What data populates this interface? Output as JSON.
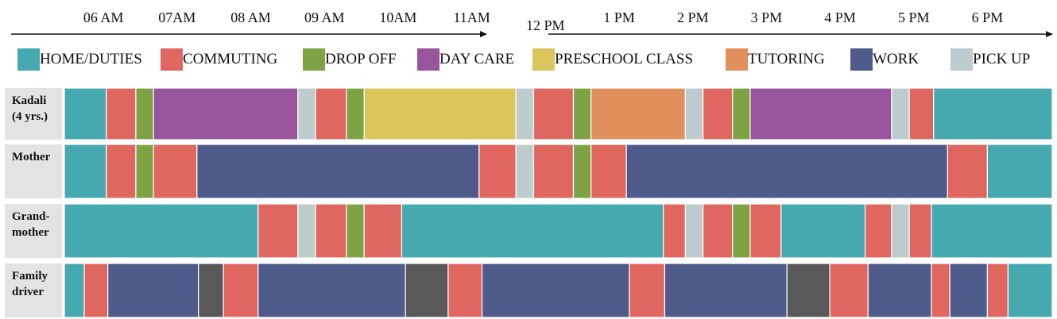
{
  "chart_data": {
    "type": "timeline",
    "time_axis": {
      "ticks": [
        {
          "t": 6.0,
          "label": "06 AM"
        },
        {
          "t": 7.0,
          "label": "07AM"
        },
        {
          "t": 8.0,
          "label": "08 AM"
        },
        {
          "t": 9.0,
          "label": "09 AM"
        },
        {
          "t": 10.0,
          "label": "10AM"
        },
        {
          "t": 11.0,
          "label": "11AM"
        },
        {
          "t": 12.0,
          "label": "12 PM"
        },
        {
          "t": 13.0,
          "label": "1 PM"
        },
        {
          "t": 14.0,
          "label": "2 PM"
        },
        {
          "t": 15.0,
          "label": "3 PM"
        },
        {
          "t": 16.0,
          "label": "4 PM"
        },
        {
          "t": 17.0,
          "label": "5 PM"
        },
        {
          "t": 18.0,
          "label": "6 PM"
        }
      ],
      "range": [
        5.47,
        18.88
      ]
    },
    "legend": [
      {
        "key": "home",
        "label": "HOME/DUTIES",
        "color": "#46a9af"
      },
      {
        "key": "commute",
        "label": "COMMUTING",
        "color": "#e0675f"
      },
      {
        "key": "dropoff",
        "label": "DROP OFF",
        "color": "#7ea345"
      },
      {
        "key": "daycare",
        "label": "DAY CARE",
        "color": "#98559e"
      },
      {
        "key": "preschool",
        "label": "PRESCHOOL CLASS",
        "color": "#dbc65c"
      },
      {
        "key": "tutoring",
        "label": "TUTORING",
        "color": "#e08f5d"
      },
      {
        "key": "work",
        "label": "WORK",
        "color": "#4f5b8a"
      },
      {
        "key": "pickup",
        "label": "PICK UP",
        "color": "#bccbcb"
      }
    ],
    "extra_colors": {
      "other": "#595959"
    },
    "rows": [
      {
        "label": [
          "Kadali",
          "(4 yrs.)"
        ],
        "segments": [
          {
            "start": 5.47,
            "end": 6.04,
            "category": "home"
          },
          {
            "start": 6.04,
            "end": 6.44,
            "category": "commute"
          },
          {
            "start": 6.44,
            "end": 6.68,
            "category": "dropoff"
          },
          {
            "start": 6.68,
            "end": 8.64,
            "category": "daycare"
          },
          {
            "start": 8.64,
            "end": 8.88,
            "category": "pickup"
          },
          {
            "start": 8.88,
            "end": 9.3,
            "category": "commute"
          },
          {
            "start": 9.3,
            "end": 9.54,
            "category": "dropoff"
          },
          {
            "start": 9.54,
            "end": 11.6,
            "category": "preschool"
          },
          {
            "start": 11.6,
            "end": 11.84,
            "category": "pickup"
          },
          {
            "start": 11.84,
            "end": 12.38,
            "category": "commute"
          },
          {
            "start": 12.38,
            "end": 12.62,
            "category": "dropoff"
          },
          {
            "start": 12.62,
            "end": 13.9,
            "category": "tutoring"
          },
          {
            "start": 13.9,
            "end": 14.14,
            "category": "pickup"
          },
          {
            "start": 14.14,
            "end": 14.54,
            "category": "commute"
          },
          {
            "start": 14.54,
            "end": 14.78,
            "category": "dropoff"
          },
          {
            "start": 14.78,
            "end": 16.7,
            "category": "daycare"
          },
          {
            "start": 16.7,
            "end": 16.94,
            "category": "pickup"
          },
          {
            "start": 16.94,
            "end": 17.27,
            "category": "commute"
          },
          {
            "start": 17.27,
            "end": 18.88,
            "category": "home"
          }
        ]
      },
      {
        "label": [
          "Mother"
        ],
        "segments": [
          {
            "start": 5.47,
            "end": 6.04,
            "category": "home"
          },
          {
            "start": 6.04,
            "end": 6.44,
            "category": "commute"
          },
          {
            "start": 6.44,
            "end": 6.68,
            "category": "dropoff"
          },
          {
            "start": 6.68,
            "end": 7.27,
            "category": "commute"
          },
          {
            "start": 7.27,
            "end": 11.1,
            "category": "work"
          },
          {
            "start": 11.1,
            "end": 11.6,
            "category": "commute"
          },
          {
            "start": 11.6,
            "end": 11.84,
            "category": "pickup"
          },
          {
            "start": 11.84,
            "end": 12.38,
            "category": "commute"
          },
          {
            "start": 12.38,
            "end": 12.62,
            "category": "dropoff"
          },
          {
            "start": 12.62,
            "end": 13.1,
            "category": "commute"
          },
          {
            "start": 13.1,
            "end": 17.46,
            "category": "work"
          },
          {
            "start": 17.46,
            "end": 18.0,
            "category": "commute"
          },
          {
            "start": 18.0,
            "end": 18.88,
            "category": "home"
          }
        ]
      },
      {
        "label": [
          "Grand-",
          "mother"
        ],
        "segments": [
          {
            "start": 5.47,
            "end": 8.1,
            "category": "home"
          },
          {
            "start": 8.1,
            "end": 8.64,
            "category": "commute"
          },
          {
            "start": 8.64,
            "end": 8.88,
            "category": "pickup"
          },
          {
            "start": 8.88,
            "end": 9.3,
            "category": "commute"
          },
          {
            "start": 9.3,
            "end": 9.54,
            "category": "dropoff"
          },
          {
            "start": 9.54,
            "end": 10.05,
            "category": "commute"
          },
          {
            "start": 10.05,
            "end": 13.6,
            "category": "home"
          },
          {
            "start": 13.6,
            "end": 13.9,
            "category": "commute"
          },
          {
            "start": 13.9,
            "end": 14.14,
            "category": "pickup"
          },
          {
            "start": 14.14,
            "end": 14.54,
            "category": "commute"
          },
          {
            "start": 14.54,
            "end": 14.78,
            "category": "dropoff"
          },
          {
            "start": 14.78,
            "end": 15.2,
            "category": "commute"
          },
          {
            "start": 15.2,
            "end": 16.34,
            "category": "home"
          },
          {
            "start": 16.34,
            "end": 16.7,
            "category": "commute"
          },
          {
            "start": 16.7,
            "end": 16.94,
            "category": "pickup"
          },
          {
            "start": 16.94,
            "end": 17.24,
            "category": "commute"
          },
          {
            "start": 17.24,
            "end": 18.88,
            "category": "home"
          }
        ]
      },
      {
        "label": [
          "Family",
          "driver"
        ],
        "segments": [
          {
            "start": 5.47,
            "end": 5.74,
            "category": "home"
          },
          {
            "start": 5.74,
            "end": 6.06,
            "category": "commute"
          },
          {
            "start": 6.06,
            "end": 7.29,
            "category": "work"
          },
          {
            "start": 7.29,
            "end": 7.63,
            "category": "other"
          },
          {
            "start": 7.63,
            "end": 8.1,
            "category": "commute"
          },
          {
            "start": 8.1,
            "end": 10.1,
            "category": "work"
          },
          {
            "start": 10.1,
            "end": 10.68,
            "category": "other"
          },
          {
            "start": 10.68,
            "end": 11.14,
            "category": "commute"
          },
          {
            "start": 11.14,
            "end": 13.14,
            "category": "work"
          },
          {
            "start": 13.14,
            "end": 13.62,
            "category": "commute"
          },
          {
            "start": 13.62,
            "end": 15.28,
            "category": "work"
          },
          {
            "start": 15.28,
            "end": 15.86,
            "category": "other"
          },
          {
            "start": 15.86,
            "end": 16.38,
            "category": "commute"
          },
          {
            "start": 16.38,
            "end": 17.24,
            "category": "work"
          },
          {
            "start": 17.24,
            "end": 17.49,
            "category": "commute"
          },
          {
            "start": 17.49,
            "end": 18.0,
            "category": "work"
          },
          {
            "start": 18.0,
            "end": 18.28,
            "category": "commute"
          },
          {
            "start": 18.28,
            "end": 18.88,
            "category": "home"
          }
        ]
      }
    ]
  }
}
